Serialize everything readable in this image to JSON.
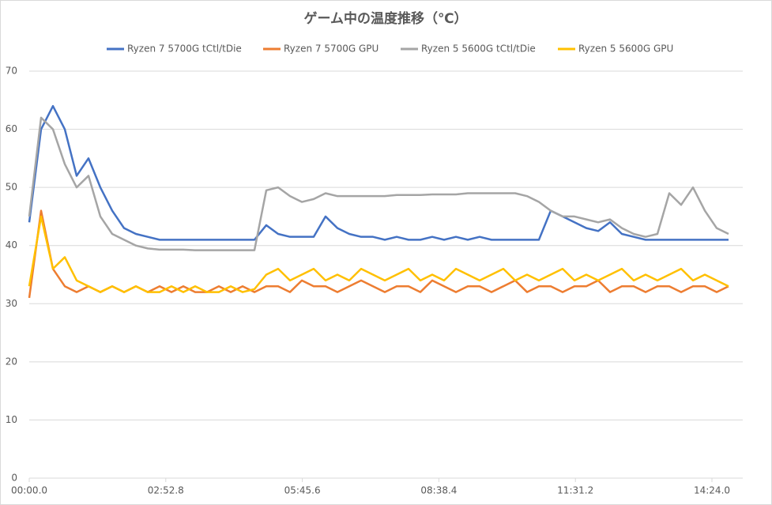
{
  "chart_data": {
    "type": "line",
    "title": "ゲーム中の温度推移（℃）",
    "x": [
      0,
      15,
      30,
      45,
      60,
      75,
      90,
      105,
      120,
      135,
      150,
      165,
      180,
      195,
      210,
      225,
      240,
      255,
      270,
      285,
      300,
      315,
      330,
      345,
      360,
      375,
      390,
      405,
      420,
      435,
      450,
      465,
      480,
      495,
      510,
      525,
      540,
      555,
      570,
      585,
      600,
      615,
      630,
      645,
      660,
      675,
      690,
      705,
      720,
      735,
      750,
      765,
      780,
      795,
      810,
      825,
      840,
      855,
      870,
      885
    ],
    "series": [
      {
        "name": "Ryzen 7 5700G tCtl/tDie",
        "color": "#4472c4",
        "values": [
          44,
          60,
          64,
          60,
          52,
          55,
          50,
          46,
          43,
          42,
          41.5,
          41,
          41,
          41,
          41,
          41,
          41,
          41,
          41,
          41,
          43.5,
          42,
          41.5,
          41.5,
          41.5,
          45,
          43,
          42,
          41.5,
          41.5,
          41,
          41.5,
          41,
          41,
          41.5,
          41,
          41.5,
          41,
          41.5,
          41,
          41,
          41,
          41,
          41,
          46,
          45,
          44,
          43,
          42.5,
          44,
          42,
          41.5,
          41,
          41,
          41,
          41,
          41,
          41,
          41,
          41
        ]
      },
      {
        "name": "Ryzen 7 5700G GPU",
        "color": "#ed7d31",
        "values": [
          31,
          46,
          36,
          33,
          32,
          33,
          32,
          33,
          32,
          33,
          32,
          33,
          32,
          33,
          32,
          32,
          33,
          32,
          33,
          32,
          33,
          33,
          32,
          34,
          33,
          33,
          32,
          33,
          34,
          33,
          32,
          33,
          33,
          32,
          34,
          33,
          32,
          33,
          33,
          32,
          33,
          34,
          32,
          33,
          33,
          32,
          33,
          33,
          34,
          32,
          33,
          33,
          32,
          33,
          33,
          32,
          33,
          33,
          32,
          33
        ]
      },
      {
        "name": "Ryzen 5 5600G tCtl/tDie",
        "color": "#a5a5a5",
        "values": [
          45,
          62,
          60,
          54,
          50,
          52,
          45,
          42,
          41,
          40,
          39.5,
          39.3,
          39.3,
          39.3,
          39.2,
          39.2,
          39.2,
          39.2,
          39.2,
          39.2,
          49.5,
          50,
          48.5,
          47.5,
          48,
          49,
          48.5,
          48.5,
          48.5,
          48.5,
          48.5,
          48.7,
          48.7,
          48.7,
          48.8,
          48.8,
          48.8,
          49,
          49,
          49,
          49,
          49,
          48.5,
          47.5,
          46,
          45,
          45,
          44.5,
          44,
          44.5,
          43,
          42,
          41.5,
          42,
          49,
          47,
          50,
          46,
          43,
          42
        ]
      },
      {
        "name": "Ryzen 5 5600G GPU",
        "color": "#ffc000",
        "values": [
          33,
          45,
          36,
          38,
          34,
          33,
          32,
          33,
          32,
          33,
          32,
          32,
          33,
          32,
          33,
          32,
          32,
          33,
          32,
          32.5,
          35,
          36,
          34,
          35,
          36,
          34,
          35,
          34,
          36,
          35,
          34,
          35,
          36,
          34,
          35,
          34,
          36,
          35,
          34,
          35,
          36,
          34,
          35,
          34,
          35,
          36,
          34,
          35,
          34,
          35,
          36,
          34,
          35,
          34,
          35,
          36,
          34,
          35,
          34,
          33
        ]
      }
    ],
    "xlim": [
      0,
      903
    ],
    "xticks": [
      {
        "value": 0,
        "label": "00:00.0"
      },
      {
        "value": 172.8,
        "label": "02:52.8"
      },
      {
        "value": 345.6,
        "label": "05:45.6"
      },
      {
        "value": 518.4,
        "label": "08:38.4"
      },
      {
        "value": 691.2,
        "label": "11:31.2"
      },
      {
        "value": 864,
        "label": "14:24.0"
      }
    ],
    "ylim": [
      0,
      70
    ],
    "yticks": [
      0,
      10,
      20,
      30,
      40,
      50,
      60,
      70
    ],
    "grid": true,
    "legend": "top"
  }
}
